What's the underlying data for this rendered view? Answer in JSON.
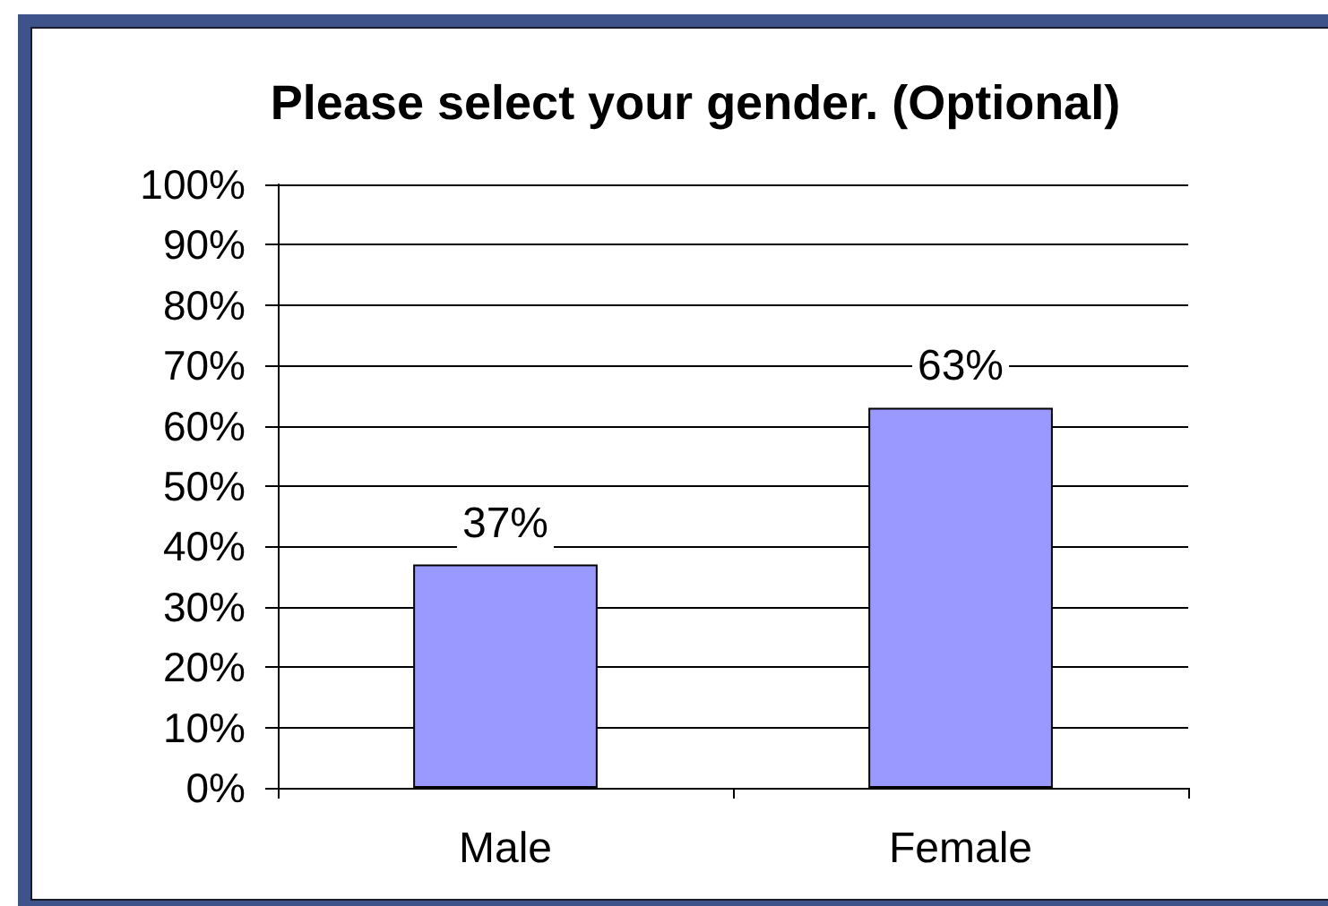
{
  "chart_data": {
    "type": "bar",
    "title": "Please select your gender. (Optional)",
    "categories": [
      "Male",
      "Female"
    ],
    "values": [
      37,
      63
    ],
    "color": "#9999ff",
    "value_labels": [
      "37%",
      "63%"
    ],
    "ylim": [
      0,
      100
    ],
    "yticks": [
      {
        "value": 0,
        "label": "0%"
      },
      {
        "value": 10,
        "label": "10%"
      },
      {
        "value": 20,
        "label": "20%"
      },
      {
        "value": 30,
        "label": "30%"
      },
      {
        "value": 40,
        "label": "40%"
      },
      {
        "value": 50,
        "label": "50%"
      },
      {
        "value": 60,
        "label": "60%"
      },
      {
        "value": 70,
        "label": "70%"
      },
      {
        "value": 80,
        "label": "80%"
      },
      {
        "value": 90,
        "label": "90%"
      },
      {
        "value": 100,
        "label": "100%"
      }
    ],
    "grid": "y"
  }
}
